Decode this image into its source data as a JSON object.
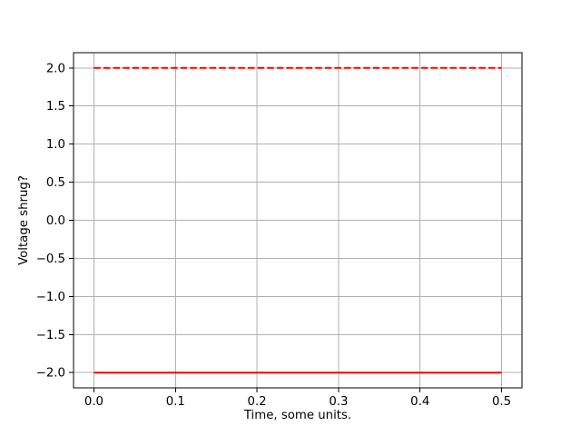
{
  "chart_data": {
    "type": "line",
    "title": "",
    "xlabel": "Time, some units.",
    "ylabel": "Voltage shrug?",
    "x_ticks": [
      0.0,
      0.1,
      0.2,
      0.3,
      0.4,
      0.5
    ],
    "x_tick_labels": [
      "0.0",
      "0.1",
      "0.2",
      "0.3",
      "0.4",
      "0.5"
    ],
    "y_ticks": [
      2.0,
      1.5,
      1.0,
      0.5,
      0.0,
      -0.5,
      -1.0,
      -1.5,
      -2.0
    ],
    "y_tick_labels": [
      "2.0",
      "1.5",
      "1.0",
      "0.5",
      "0.0",
      "−0.5",
      "−1.0",
      "−1.5",
      "−2.0"
    ],
    "xlim": [
      -0.025,
      0.525
    ],
    "ylim": [
      -2.2,
      2.2
    ],
    "grid": true,
    "legend": null,
    "colors": {
      "line": "#ff0000",
      "grid": "#b0b0b0",
      "spine": "#000000",
      "background": "#ffffff"
    },
    "series": [
      {
        "name": "dashed-red-line",
        "style": "dashed",
        "color": "#ff0000",
        "x": [
          0.0,
          0.5
        ],
        "y": [
          2.0,
          2.0
        ]
      },
      {
        "name": "solid-red-line",
        "style": "solid",
        "color": "#ff0000",
        "x": [
          0.0,
          0.5
        ],
        "y": [
          -2.0,
          -2.0
        ]
      }
    ]
  }
}
